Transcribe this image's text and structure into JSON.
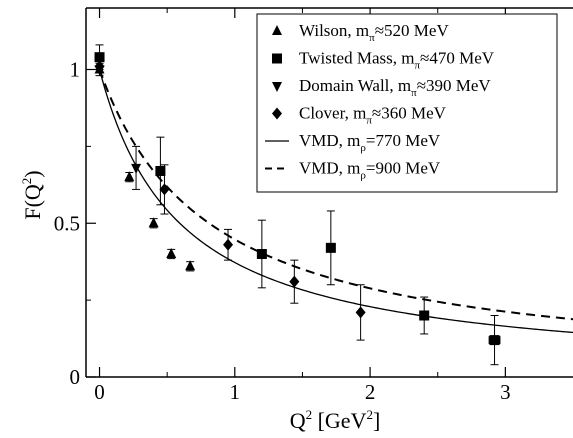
{
  "chart_data": {
    "type": "scatter",
    "xlabel": {
      "base": "Q",
      "sup": "2",
      "unit_pre": " [GeV",
      "unit_sup": "2",
      "unit_post": "]"
    },
    "ylabel": {
      "pre": "F(Q",
      "sup": "2",
      "post": ")"
    },
    "xlim": [
      -0.1,
      3.5
    ],
    "ylim": [
      0,
      1.2
    ],
    "xticks": [
      {
        "value": 0,
        "label": "0"
      },
      {
        "value": 1,
        "label": "1"
      },
      {
        "value": 2,
        "label": "2"
      },
      {
        "value": 3,
        "label": "3"
      }
    ],
    "yticks": [
      {
        "value": 0,
        "label": "0"
      },
      {
        "value": 0.5,
        "label": "0.5"
      },
      {
        "value": 1,
        "label": "1"
      }
    ],
    "legend_position": "top-right",
    "series": [
      {
        "name": "Wilson, m",
        "sub": "π",
        "tail": "≈520 MeV",
        "marker": "triangle-up",
        "points": [
          {
            "x": 0.0,
            "y": 1.0,
            "err": 0.01
          },
          {
            "x": 0.22,
            "y": 0.65,
            "err": 0.015
          },
          {
            "x": 0.4,
            "y": 0.5,
            "err": 0.015
          },
          {
            "x": 0.53,
            "y": 0.4,
            "err": 0.015
          },
          {
            "x": 0.67,
            "y": 0.36,
            "err": 0.015
          }
        ]
      },
      {
        "name": "Twisted Mass, m",
        "sub": "π",
        "tail": "≈470 MeV",
        "marker": "square",
        "points": [
          {
            "x": 0.0,
            "y": 1.04,
            "err": 0.04
          },
          {
            "x": 0.45,
            "y": 0.67,
            "err": 0.11,
            "xerr": 0.03
          },
          {
            "x": 1.2,
            "y": 0.4,
            "err": 0.11,
            "xerr": 0.03
          },
          {
            "x": 1.71,
            "y": 0.42,
            "err": 0.12,
            "xerr": 0.03
          },
          {
            "x": 2.4,
            "y": 0.2,
            "err": 0.06,
            "xerr": 0.03
          },
          {
            "x": 2.92,
            "y": 0.12,
            "err": 0.08,
            "xerr": 0.04
          }
        ]
      },
      {
        "name": "Domain Wall, m",
        "sub": "π",
        "tail": "≈390 MeV",
        "marker": "triangle-down",
        "points": [
          {
            "x": 0.0,
            "y": 1.0,
            "err": 0.02
          },
          {
            "x": 0.27,
            "y": 0.68,
            "err": 0.07
          }
        ]
      },
      {
        "name": "Clover, m",
        "sub": "π",
        "tail": "≈360 MeV",
        "marker": "diamond",
        "points": [
          {
            "x": 0.0,
            "y": 1.01,
            "err": 0.02
          },
          {
            "x": 0.48,
            "y": 0.61,
            "err": 0.08
          },
          {
            "x": 0.95,
            "y": 0.43,
            "err": 0.05
          },
          {
            "x": 1.44,
            "y": 0.31,
            "err": 0.07
          },
          {
            "x": 1.93,
            "y": 0.21,
            "err": 0.09
          }
        ]
      },
      {
        "name": "VMD, m",
        "sub": "ρ",
        "tail": "=770 MeV",
        "type": "line",
        "style": "solid",
        "mass": 0.77
      },
      {
        "name": "VMD, m",
        "sub": "ρ",
        "tail": "=900 MeV",
        "type": "line",
        "style": "dashed",
        "mass": 0.9
      }
    ]
  }
}
